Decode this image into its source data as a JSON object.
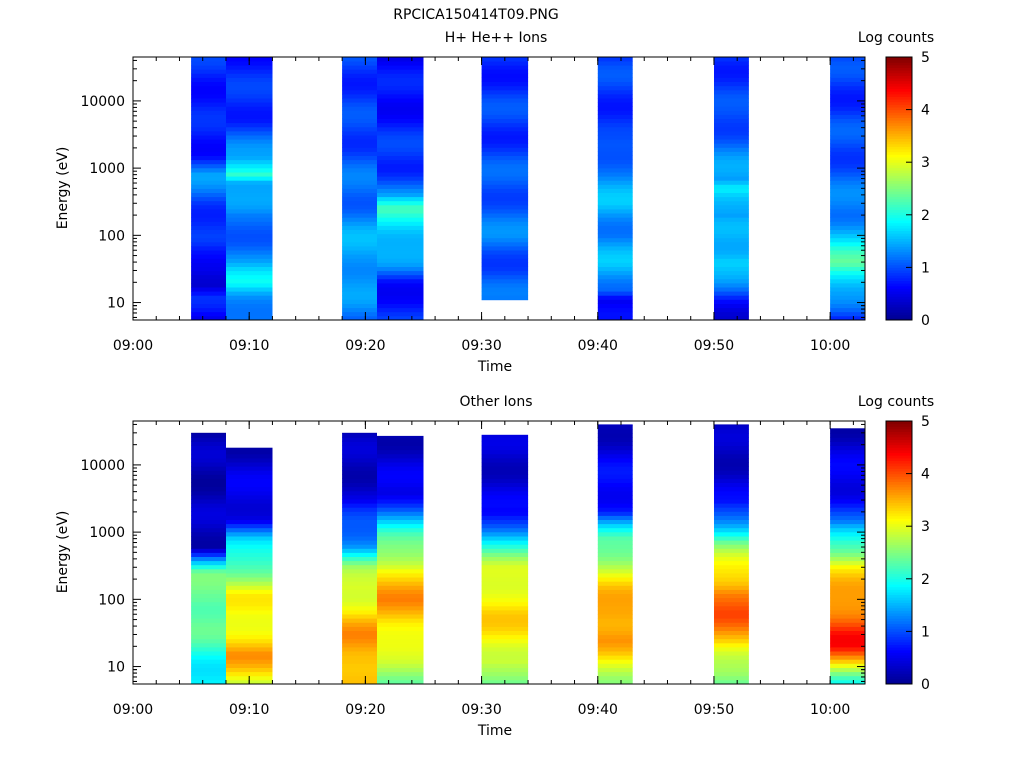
{
  "figure": {
    "title": "RPCICA150414T09.PNG"
  },
  "colormap": [
    "#00008f",
    "#0000ff",
    "#0080ff",
    "#00ffff",
    "#80ff80",
    "#ffff00",
    "#ff8000",
    "#ff0000",
    "#800000"
  ],
  "chart_data": [
    {
      "type": "heatmap",
      "title": "H+ He++ Ions",
      "xlabel": "Time",
      "ylabel": "Energy (eV)",
      "colorbar_label": "Log counts",
      "xlim": [
        "09:00",
        "10:03"
      ],
      "xticks": [
        "09:00",
        "09:10",
        "09:20",
        "09:30",
        "09:40",
        "09:50",
        "10:00"
      ],
      "ylim": [
        5.5,
        45000
      ],
      "yscale": "log",
      "yticks": [
        10,
        100,
        1000,
        10000
      ],
      "yticklabels": [
        "10",
        "100",
        "1000",
        "10000"
      ],
      "clim": [
        0,
        5
      ],
      "cticks": [
        "0",
        "1",
        "2",
        "3",
        "4",
        "5"
      ],
      "columns": [
        {
          "start": "09:05",
          "end": "09:08",
          "emin": 5.5,
          "emax": 45000,
          "profile": [
            [
              5.5,
              0.5
            ],
            [
              12,
              0.7
            ],
            [
              18,
              0.4
            ],
            [
              30,
              0.7
            ],
            [
              60,
              0.6
            ],
            [
              100,
              0.8
            ],
            [
              300,
              1.0
            ],
            [
              800,
              1.3
            ],
            [
              1500,
              0.8
            ],
            [
              5000,
              0.7
            ],
            [
              15000,
              0.8
            ],
            [
              45000,
              0.8
            ]
          ]
        },
        {
          "start": "09:08",
          "end": "09:12",
          "emin": 5.5,
          "emax": 45000,
          "profile": [
            [
              5.5,
              1.1
            ],
            [
              12,
              1.5
            ],
            [
              20,
              1.9
            ],
            [
              40,
              1.3
            ],
            [
              80,
              1.2
            ],
            [
              200,
              1.1
            ],
            [
              600,
              1.6
            ],
            [
              800,
              2.3
            ],
            [
              1500,
              1.3
            ],
            [
              5000,
              0.9
            ],
            [
              15000,
              0.8
            ],
            [
              45000,
              0.8
            ]
          ]
        },
        {
          "start": "09:18",
          "end": "09:21",
          "emin": 5.5,
          "emax": 45000,
          "profile": [
            [
              5.5,
              1.2
            ],
            [
              15,
              1.3
            ],
            [
              40,
              1.5
            ],
            [
              100,
              1.4
            ],
            [
              300,
              1.2
            ],
            [
              800,
              1.1
            ],
            [
              2000,
              1.0
            ],
            [
              6000,
              0.9
            ],
            [
              20000,
              0.9
            ],
            [
              45000,
              0.9
            ]
          ]
        },
        {
          "start": "09:21",
          "end": "09:25",
          "emin": 5.5,
          "emax": 45000,
          "profile": [
            [
              5.5,
              0.8
            ],
            [
              20,
              0.7
            ],
            [
              35,
              1.2
            ],
            [
              80,
              1.6
            ],
            [
              150,
              1.9
            ],
            [
              250,
              2.1
            ],
            [
              400,
              1.3
            ],
            [
              1000,
              0.9
            ],
            [
              3000,
              0.8
            ],
            [
              10000,
              0.7
            ],
            [
              45000,
              0.6
            ]
          ]
        },
        {
          "start": "09:30",
          "end": "09:34",
          "emin": 11,
          "emax": 45000,
          "profile": [
            [
              11,
              1.1
            ],
            [
              30,
              1.0
            ],
            [
              100,
              1.2
            ],
            [
              300,
              1.1
            ],
            [
              1000,
              1.0
            ],
            [
              3000,
              0.9
            ],
            [
              10000,
              0.9
            ],
            [
              45000,
              0.8
            ]
          ]
        },
        {
          "start": "09:40",
          "end": "09:43",
          "emin": 5.5,
          "emax": 45000,
          "profile": [
            [
              5.5,
              0.5
            ],
            [
              11,
              0.6
            ],
            [
              15,
              1.3
            ],
            [
              40,
              1.5
            ],
            [
              100,
              1.3
            ],
            [
              300,
              1.5
            ],
            [
              1000,
              1.3
            ],
            [
              3000,
              0.8
            ],
            [
              10000,
              0.9
            ],
            [
              45000,
              0.9
            ]
          ]
        },
        {
          "start": "09:50",
          "end": "09:53",
          "emin": 5.5,
          "emax": 45000,
          "profile": [
            [
              5.5,
              0.5
            ],
            [
              11,
              0.7
            ],
            [
              20,
              1.2
            ],
            [
              40,
              1.8
            ],
            [
              80,
              1.5
            ],
            [
              200,
              1.3
            ],
            [
              500,
              2.0
            ],
            [
              700,
              1.4
            ],
            [
              2000,
              1.2
            ],
            [
              8000,
              0.9
            ],
            [
              45000,
              0.9
            ]
          ]
        },
        {
          "start": "10:00",
          "end": "10:03",
          "emin": 5.5,
          "emax": 45000,
          "profile": [
            [
              5.5,
              0.6
            ],
            [
              11,
              1.3
            ],
            [
              20,
              1.8
            ],
            [
              40,
              2.3
            ],
            [
              80,
              1.7
            ],
            [
              200,
              1.3
            ],
            [
              600,
              1.1
            ],
            [
              2000,
              1.0
            ],
            [
              8000,
              0.9
            ],
            [
              45000,
              0.9
            ]
          ]
        }
      ]
    },
    {
      "type": "heatmap",
      "title": "Other Ions",
      "xlabel": "Time",
      "ylabel": "Energy (eV)",
      "colorbar_label": "Log counts",
      "xlim": [
        "09:00",
        "10:03"
      ],
      "xticks": [
        "09:00",
        "09:10",
        "09:20",
        "09:30",
        "09:40",
        "09:50",
        "10:00"
      ],
      "ylim": [
        5.5,
        45000
      ],
      "yscale": "log",
      "yticks": [
        10,
        100,
        1000,
        10000
      ],
      "yticklabels": [
        "10",
        "100",
        "1000",
        "10000"
      ],
      "clim": [
        0,
        5
      ],
      "cticks": [
        "0",
        "1",
        "2",
        "3",
        "4",
        "5"
      ],
      "columns": [
        {
          "start": "09:05",
          "end": "09:08",
          "emin": 5.5,
          "emax": 30000,
          "profile": [
            [
              5.5,
              1.8
            ],
            [
              15,
              2.0
            ],
            [
              40,
              2.3
            ],
            [
              100,
              2.5
            ],
            [
              250,
              2.3
            ],
            [
              400,
              1.3
            ],
            [
              600,
              0.3
            ],
            [
              30000,
              0.2
            ]
          ]
        },
        {
          "start": "09:08",
          "end": "09:12",
          "emin": 5.5,
          "emax": 18000,
          "profile": [
            [
              5.5,
              2.9
            ],
            [
              15,
              3.6
            ],
            [
              30,
              3.3
            ],
            [
              60,
              3.0
            ],
            [
              120,
              3.1
            ],
            [
              300,
              2.4
            ],
            [
              800,
              1.5
            ],
            [
              1500,
              0.6
            ],
            [
              18000,
              0.3
            ]
          ]
        },
        {
          "start": "09:18",
          "end": "09:21",
          "emin": 5.5,
          "emax": 30000,
          "profile": [
            [
              5.5,
              3.3
            ],
            [
              12,
              3.6
            ],
            [
              30,
              3.6
            ],
            [
              70,
              3.2
            ],
            [
              150,
              3.0
            ],
            [
              300,
              2.5
            ],
            [
              600,
              1.5
            ],
            [
              1500,
              1.0
            ],
            [
              3000,
              0.4
            ],
            [
              30000,
              0.2
            ]
          ]
        },
        {
          "start": "09:21",
          "end": "09:25",
          "emin": 5.5,
          "emax": 27000,
          "profile": [
            [
              5.5,
              2.5
            ],
            [
              15,
              2.8
            ],
            [
              30,
              3.2
            ],
            [
              60,
              3.5
            ],
            [
              100,
              3.6
            ],
            [
              250,
              3.3
            ],
            [
              500,
              2.6
            ],
            [
              1000,
              2.0
            ],
            [
              2000,
              1.3
            ],
            [
              4000,
              0.5
            ],
            [
              27000,
              0.3
            ]
          ]
        },
        {
          "start": "09:30",
          "end": "09:34",
          "emin": 5.5,
          "emax": 28000,
          "profile": [
            [
              5.5,
              2.2
            ],
            [
              12,
              3.0
            ],
            [
              25,
              3.1
            ],
            [
              60,
              3.3
            ],
            [
              120,
              3.2
            ],
            [
              300,
              2.8
            ],
            [
              800,
              1.8
            ],
            [
              2000,
              0.5
            ],
            [
              28000,
              0.3
            ]
          ]
        },
        {
          "start": "09:40",
          "end": "09:43",
          "emin": 5.5,
          "emax": 40000,
          "profile": [
            [
              5.5,
              2.7
            ],
            [
              12,
              3.0
            ],
            [
              25,
              3.6
            ],
            [
              60,
              3.7
            ],
            [
              120,
              3.4
            ],
            [
              300,
              2.9
            ],
            [
              800,
              2.2
            ],
            [
              2000,
              0.8
            ],
            [
              40000,
              0.3
            ]
          ]
        },
        {
          "start": "09:50",
          "end": "09:53",
          "emin": 5.5,
          "emax": 40000,
          "profile": [
            [
              5.5,
              2.2
            ],
            [
              12,
              2.8
            ],
            [
              25,
              3.5
            ],
            [
              60,
              3.9
            ],
            [
              120,
              3.9
            ],
            [
              300,
              3.1
            ],
            [
              700,
              2.4
            ],
            [
              1500,
              1.4
            ],
            [
              3000,
              0.5
            ],
            [
              40000,
              0.2
            ]
          ]
        },
        {
          "start": "10:00",
          "end": "10:03",
          "emin": 5.5,
          "emax": 35000,
          "profile": [
            [
              5.5,
              2.0
            ],
            [
              12,
              3.4
            ],
            [
              20,
              4.2
            ],
            [
              30,
              4.3
            ],
            [
              60,
              3.9
            ],
            [
              120,
              3.5
            ],
            [
              300,
              3.2
            ],
            [
              700,
              2.2
            ],
            [
              1500,
              1.0
            ],
            [
              4000,
              0.6
            ],
            [
              35000,
              0.3
            ]
          ]
        }
      ]
    }
  ]
}
